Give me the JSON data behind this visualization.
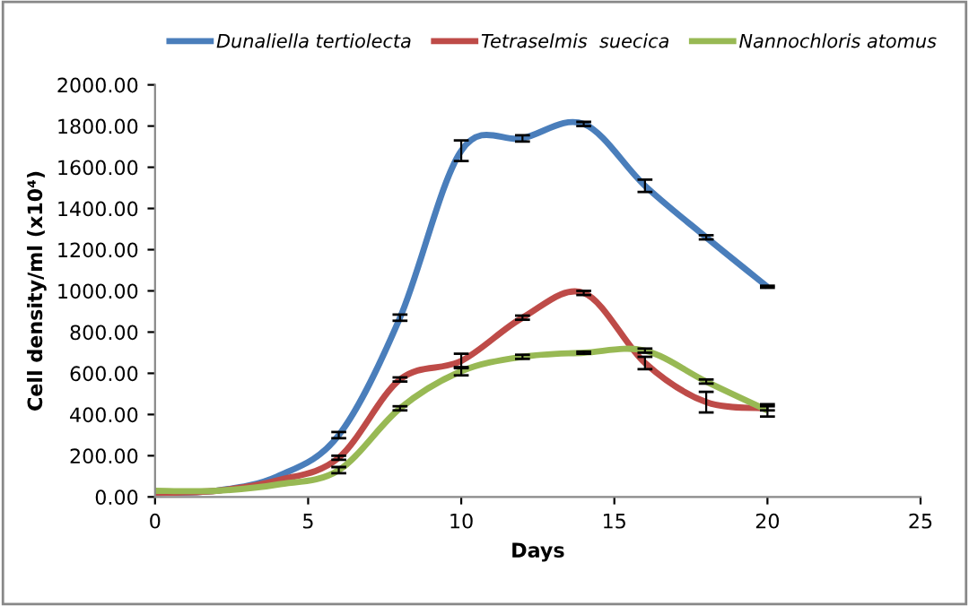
{
  "chart_data": {
    "type": "line",
    "xlabel": "Days",
    "ylabel": "Cell density/ml (x10⁴)",
    "x": [
      0,
      2,
      4,
      6,
      8,
      10,
      12,
      14,
      16,
      18,
      20
    ],
    "series": [
      {
        "name": "Dunaliella tertiolecta",
        "color": "#4a7ebb",
        "values": [
          20,
          30,
          100,
          300,
          870,
          1680,
          1740,
          1810,
          1510,
          1260,
          1020
        ],
        "errors": [
          null,
          null,
          null,
          15,
          15,
          50,
          15,
          10,
          30,
          10,
          5
        ]
      },
      {
        "name": "Tetraselmis  suecica",
        "color": "#be4b48",
        "values": [
          20,
          30,
          80,
          190,
          570,
          660,
          870,
          990,
          650,
          460,
          430
        ],
        "errors": [
          null,
          null,
          null,
          10,
          10,
          35,
          10,
          10,
          30,
          50,
          10
        ]
      },
      {
        "name": "Nannochloris atomus",
        "color": "#98b954",
        "values": [
          30,
          30,
          60,
          130,
          430,
          610,
          680,
          700,
          710,
          560,
          420
        ],
        "errors": [
          null,
          null,
          null,
          15,
          10,
          20,
          10,
          5,
          10,
          10,
          30
        ]
      }
    ],
    "xlim": [
      0,
      25
    ],
    "xticks": [
      0,
      5,
      10,
      15,
      20,
      25
    ],
    "ylim": [
      0,
      2000
    ],
    "yticks": [
      {
        "value": 0,
        "label": "0.00"
      },
      {
        "value": 200,
        "label": "200.00"
      },
      {
        "value": 400,
        "label": "400.00"
      },
      {
        "value": 600,
        "label": "600.00"
      },
      {
        "value": 800,
        "label": "800.00"
      },
      {
        "value": 1000,
        "label": "1000.00"
      },
      {
        "value": 1200,
        "label": "1200.00"
      },
      {
        "value": 1400,
        "label": "1400.00"
      },
      {
        "value": 1600,
        "label": "1600.00"
      },
      {
        "value": 1800,
        "label": "1800.00"
      },
      {
        "value": 2000,
        "label": "2000.00"
      }
    ],
    "grid": false,
    "legend": "top",
    "marker": "none",
    "line_style": "solid"
  }
}
